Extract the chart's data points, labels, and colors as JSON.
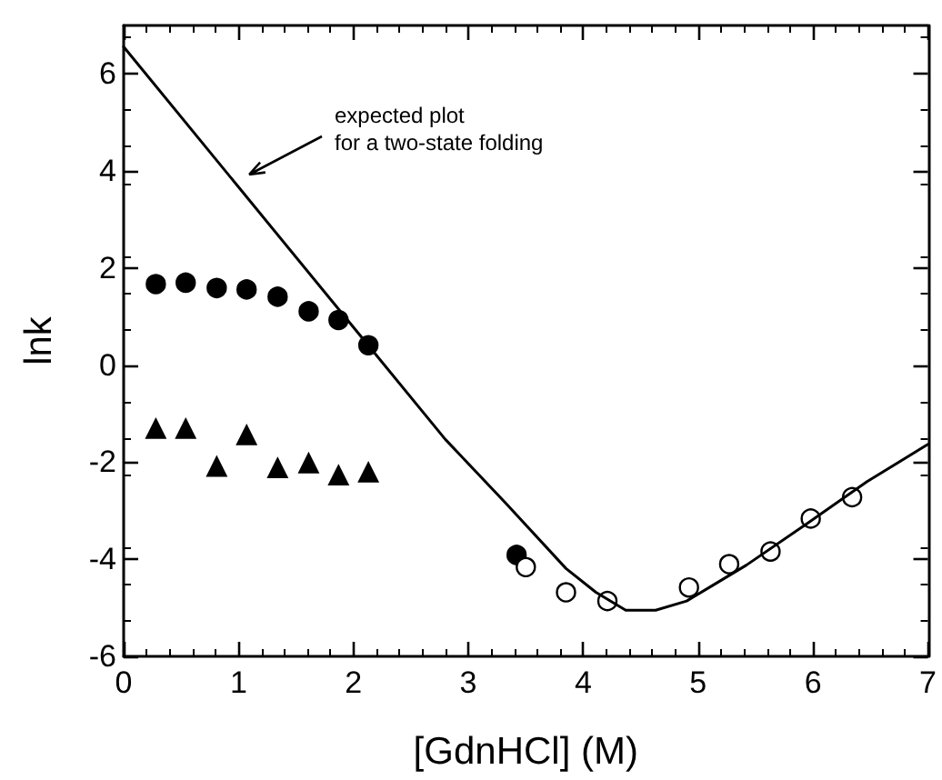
{
  "chart_data": {
    "type": "scatter",
    "xlabel": "[GdnHCl] (M)",
    "ylabel": "lnk",
    "xlim": [
      0,
      7
    ],
    "xticks": [
      0,
      1,
      2,
      3,
      4,
      5,
      6,
      7
    ],
    "ylim": [
      -6,
      7
    ],
    "yticks": [
      -6,
      -4,
      -2,
      0,
      2,
      4,
      6
    ],
    "grid": false,
    "annotations": [
      "expected plot\nfor a two-state folding"
    ],
    "series": [
      {
        "type": "line",
        "marker": "none",
        "color": "#000000",
        "x": [
          0,
          1,
          2,
          2.8,
          3.32,
          3.85,
          4.11,
          4.37,
          4.63,
          4.9,
          5.16,
          5.42,
          5.95,
          6.47,
          7
        ],
        "values": [
          6.56,
          3.67,
          0.78,
          -1.53,
          -2.83,
          -4.19,
          -4.68,
          -5.05,
          -5.05,
          -4.86,
          -4.49,
          -4.12,
          -3.26,
          -2.4,
          -1.63
        ]
      },
      {
        "marker": "circle",
        "color": "#000000",
        "x": [
          0.28,
          0.54,
          0.81,
          1.07,
          1.34,
          1.61,
          1.87,
          2.13,
          3.42
        ],
        "values": [
          1.67,
          1.7,
          1.59,
          1.56,
          1.41,
          1.11,
          0.93,
          0.41,
          -3.91
        ]
      },
      {
        "marker": "triangle",
        "color": "#000000",
        "x": [
          0.28,
          0.54,
          0.81,
          1.07,
          1.34,
          1.61,
          1.87,
          2.13
        ],
        "values": [
          -1.31,
          -1.31,
          -2.09,
          -1.44,
          -2.12,
          -2.02,
          -2.27,
          -2.21
        ]
      },
      {
        "marker": "circle",
        "color": "#ffffff",
        "x": [
          3.5,
          3.85,
          4.21,
          4.92,
          5.27,
          5.63,
          5.98,
          6.34
        ],
        "values": [
          -4.16,
          -4.68,
          -4.86,
          -4.58,
          -4.1,
          -3.84,
          -3.16,
          -2.72
        ]
      }
    ]
  }
}
